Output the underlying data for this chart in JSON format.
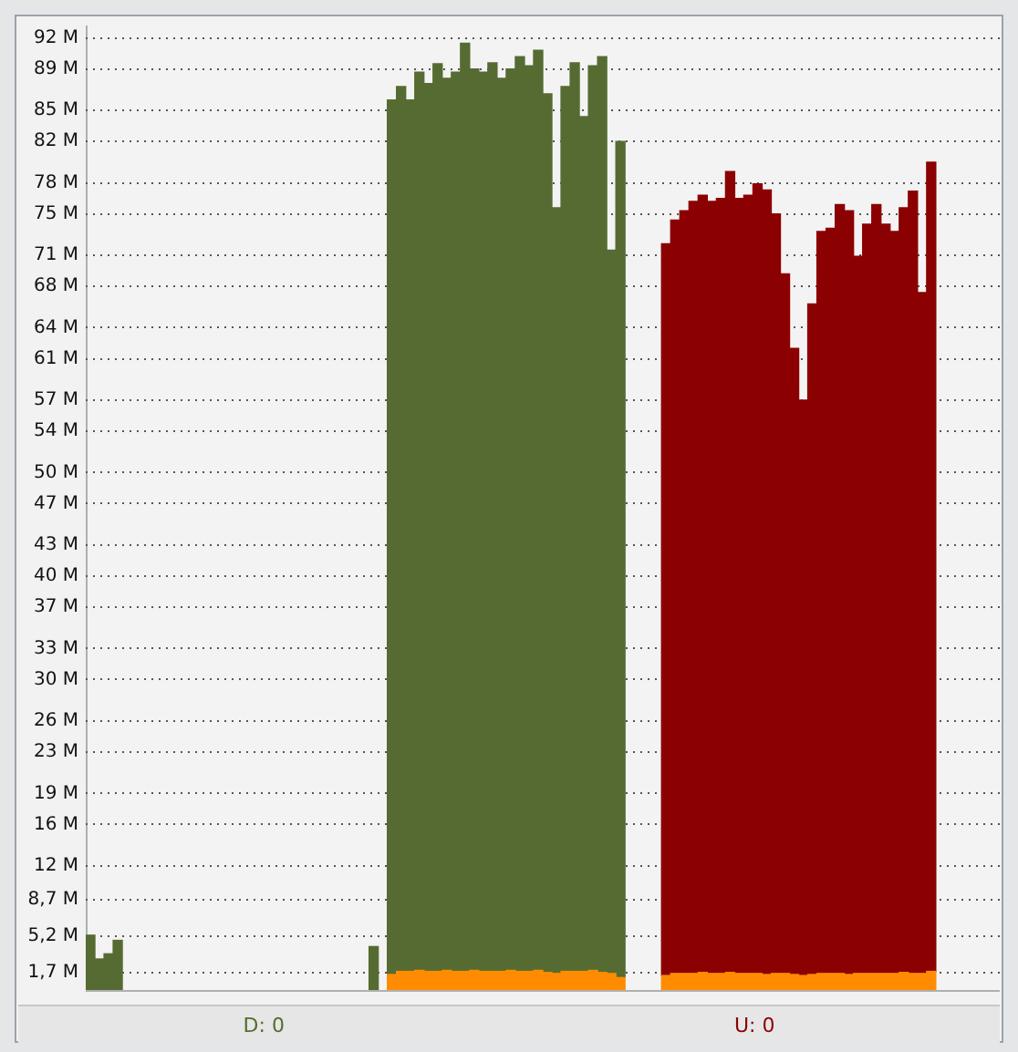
{
  "chart_data": {
    "type": "bar",
    "stacked": true,
    "categories": [
      null,
      null,
      null,
      null,
      null,
      null,
      null,
      null,
      null,
      null,
      null,
      null,
      null,
      null,
      null,
      null,
      null,
      null,
      null,
      null,
      null,
      null,
      null,
      null,
      null,
      null,
      null,
      null,
      null,
      null,
      null,
      null,
      null,
      null,
      null,
      null,
      null,
      null,
      null,
      null,
      null,
      null,
      null,
      null,
      null,
      null,
      null,
      null,
      null,
      null,
      null,
      null,
      null,
      null,
      null,
      null,
      null,
      null,
      null,
      null,
      null,
      null,
      null,
      null,
      null,
      null,
      null,
      null,
      null,
      null,
      null,
      null,
      null,
      null,
      null,
      null,
      null,
      null,
      null,
      null,
      null,
      null,
      null,
      null,
      null,
      null,
      null,
      null,
      null,
      null,
      null,
      null,
      null,
      null,
      null,
      null,
      null,
      null,
      null,
      null
    ],
    "series": [
      {
        "color": "#ff8c00",
        "values": [
          null,
          null,
          null,
          null,
          null,
          null,
          null,
          null,
          null,
          null,
          null,
          null,
          null,
          null,
          null,
          null,
          null,
          null,
          null,
          null,
          null,
          null,
          null,
          null,
          null,
          null,
          null,
          null,
          null,
          null,
          null,
          null,
          null,
          1.5,
          1.8,
          1.8,
          1.9,
          1.8,
          1.8,
          1.9,
          1.8,
          1.8,
          1.9,
          1.8,
          1.8,
          1.8,
          1.9,
          1.8,
          1.8,
          1.9,
          1.7,
          1.6,
          1.8,
          1.8,
          1.8,
          1.9,
          1.7,
          1.6,
          1.2,
          null,
          null,
          null,
          null,
          1.4,
          1.6,
          1.6,
          1.6,
          1.7,
          1.6,
          1.6,
          1.7,
          1.6,
          1.6,
          1.6,
          1.5,
          1.6,
          1.6,
          1.5,
          1.4,
          1.5,
          1.6,
          1.6,
          1.6,
          1.5,
          1.6,
          1.6,
          1.6,
          1.6,
          1.6,
          1.7,
          1.6,
          1.6,
          1.8,
          null,
          null,
          null,
          null,
          null,
          null,
          null
        ]
      },
      {
        "name": "D: 0",
        "color": "#566b32",
        "values": [
          5.3,
          3.0,
          3.5,
          4.8,
          null,
          null,
          null,
          null,
          null,
          null,
          null,
          null,
          null,
          null,
          null,
          null,
          null,
          null,
          null,
          null,
          null,
          null,
          null,
          null,
          null,
          null,
          null,
          null,
          null,
          null,
          null,
          4.2,
          null,
          84.5,
          85.5,
          84.2,
          86.8,
          85.8,
          87.7,
          86.2,
          86.9,
          89.7,
          87.1,
          86.9,
          87.8,
          86.3,
          87.1,
          88.4,
          87.5,
          88.9,
          84.9,
          74.0,
          85.5,
          87.8,
          82.6,
          87.4,
          88.5,
          69.9,
          80.8,
          null,
          null,
          null,
          null,
          null,
          null,
          null,
          null,
          null,
          null,
          null,
          null,
          null,
          null,
          null,
          null,
          null,
          null,
          null,
          null,
          null,
          null,
          null,
          null,
          null,
          null,
          null,
          null,
          null,
          null,
          null,
          null,
          null,
          null,
          null,
          null,
          null,
          null,
          null,
          null,
          null
        ]
      },
      {
        "name": "U: 0",
        "color": "#8b0000",
        "values": [
          null,
          null,
          null,
          null,
          null,
          null,
          null,
          null,
          null,
          null,
          null,
          null,
          null,
          null,
          null,
          null,
          null,
          null,
          null,
          null,
          null,
          null,
          null,
          null,
          null,
          null,
          null,
          null,
          null,
          null,
          null,
          null,
          null,
          null,
          null,
          null,
          null,
          null,
          null,
          null,
          null,
          null,
          null,
          null,
          null,
          null,
          null,
          null,
          null,
          null,
          null,
          null,
          null,
          null,
          null,
          null,
          null,
          null,
          null,
          null,
          null,
          null,
          null,
          70.7,
          72.8,
          73.7,
          74.6,
          75.1,
          74.6,
          74.9,
          77.4,
          74.9,
          75.2,
          76.3,
          75.8,
          73.4,
          67.6,
          60.5,
          55.6,
          64.8,
          71.7,
          72.0,
          74.3,
          73.8,
          69.3,
          72.4,
          74.3,
          72.4,
          71.7,
          73.9,
          75.6,
          65.8,
          78.2,
          null,
          null,
          null,
          null,
          null,
          null,
          null
        ]
      }
    ],
    "ylim": [
      0,
      93.2
    ],
    "yticks": [
      {
        "value": 1.7,
        "label": "1,7 M"
      },
      {
        "value": 5.2,
        "label": "5,2 M"
      },
      {
        "value": 8.7,
        "label": "8,7 M"
      },
      {
        "value": 12,
        "label": "12 M"
      },
      {
        "value": 16,
        "label": "16 M"
      },
      {
        "value": 19,
        "label": "19 M"
      },
      {
        "value": 23,
        "label": "23 M"
      },
      {
        "value": 26,
        "label": "26 M"
      },
      {
        "value": 30,
        "label": "30 M"
      },
      {
        "value": 33,
        "label": "33 M"
      },
      {
        "value": 37,
        "label": "37 M"
      },
      {
        "value": 40,
        "label": "40 M"
      },
      {
        "value": 43,
        "label": "43 M"
      },
      {
        "value": 47,
        "label": "47 M"
      },
      {
        "value": 50,
        "label": "50 M"
      },
      {
        "value": 54,
        "label": "54 M"
      },
      {
        "value": 57,
        "label": "57 M"
      },
      {
        "value": 61,
        "label": "61 M"
      },
      {
        "value": 64,
        "label": "64 M"
      },
      {
        "value": 68,
        "label": "68 M"
      },
      {
        "value": 71,
        "label": "71 M"
      },
      {
        "value": 75,
        "label": "75 M"
      },
      {
        "value": 78,
        "label": "78 M"
      },
      {
        "value": 82,
        "label": "82 M"
      },
      {
        "value": 85,
        "label": "85 M"
      },
      {
        "value": 89,
        "label": "89 M"
      },
      {
        "value": 92,
        "label": "92 M"
      }
    ],
    "grid": "y",
    "tick_labels": "y",
    "legend": "bottom"
  }
}
